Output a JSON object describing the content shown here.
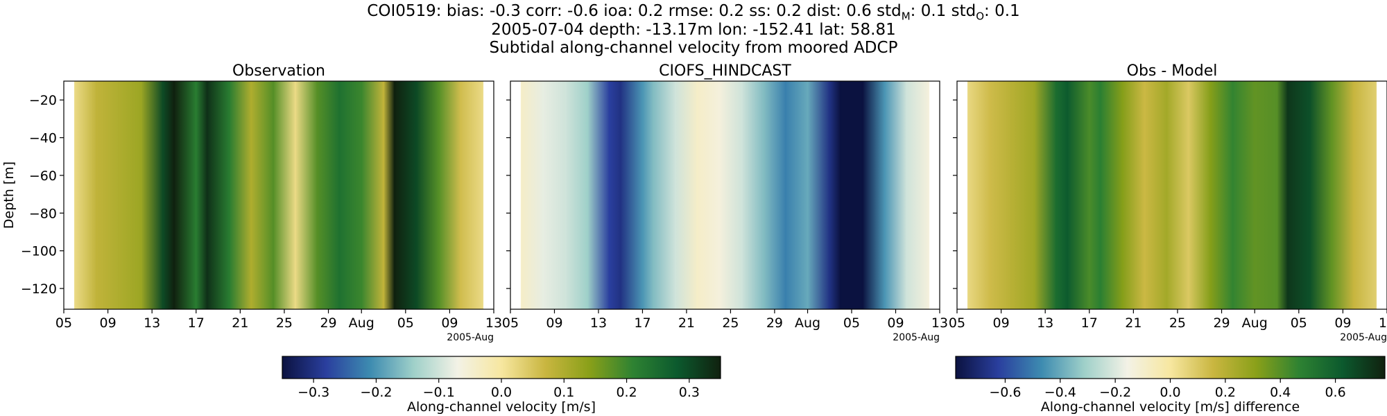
{
  "figure": {
    "title_lines": [
      "COI0519: bias: -0.3  corr: -0.6  ioa: 0.2  rmse: 0.2  ss: 0.2  dist: 0.6  std",
      "2005-07-04 depth: -13.17m lon: -152.41 lat: 58.81",
      "Subtidal along-channel velocity from moored ADCP"
    ],
    "title_std_parts": [
      {
        "base": "std",
        "sub": "M",
        "value": ": 0.1"
      },
      {
        "base": "std",
        "sub": "O",
        "value": ": 0.1"
      }
    ]
  },
  "chart_data": [
    {
      "type": "heatmap",
      "panel": "observation",
      "title": "Observation",
      "ylabel": "Depth [m]",
      "xlabel": "",
      "x_tick_labels": [
        "05",
        "09",
        "13",
        "17",
        "21",
        "25",
        "29",
        "Aug",
        "05",
        "09",
        "13"
      ],
      "x_offset_label": "2005-Aug",
      "y_ticks": [
        -20,
        -40,
        -60,
        -80,
        -100,
        -120
      ],
      "ylim": [
        -131,
        -10
      ],
      "xlim": [
        "2005-07-05",
        "2005-08-13"
      ],
      "data_range": [
        "2005-07-06",
        "2005-08-12"
      ],
      "vmin": -0.35,
      "vmax": 0.35,
      "profile_dates": [
        "2005-07-06",
        "2005-07-08",
        "2005-07-10",
        "2005-07-12",
        "2005-07-14",
        "2005-07-15",
        "2005-07-17",
        "2005-07-18",
        "2005-07-20",
        "2005-07-22",
        "2005-07-24",
        "2005-07-26",
        "2005-07-28",
        "2005-07-30",
        "2005-08-01",
        "2005-08-03",
        "2005-08-04",
        "2005-08-06",
        "2005-08-08",
        "2005-08-10",
        "2005-08-12"
      ],
      "column_values": [
        0.02,
        0.08,
        0.1,
        0.12,
        0.3,
        0.35,
        0.22,
        0.33,
        0.22,
        0.1,
        0.18,
        0.02,
        0.18,
        0.24,
        0.2,
        0.08,
        0.35,
        0.3,
        0.18,
        0.06,
        0.02
      ]
    },
    {
      "type": "heatmap",
      "panel": "model",
      "title": "CIOFS_HINDCAST",
      "x_tick_labels": [
        "05",
        "09",
        "13",
        "17",
        "21",
        "25",
        "29",
        "Aug",
        "05",
        "09",
        "13"
      ],
      "x_offset_label": "2005-Aug",
      "y_ticks": [
        -20,
        -40,
        -60,
        -80,
        -100,
        -120
      ],
      "ylim": [
        -131,
        -10
      ],
      "xlim": [
        "2005-07-05",
        "2005-08-13"
      ],
      "data_range": [
        "2005-07-06",
        "2005-08-12"
      ],
      "vmin": -0.35,
      "vmax": 0.35,
      "profile_dates": [
        "2005-07-06",
        "2005-07-08",
        "2005-07-10",
        "2005-07-12",
        "2005-07-14",
        "2005-07-15",
        "2005-07-17",
        "2005-07-18",
        "2005-07-20",
        "2005-07-22",
        "2005-07-24",
        "2005-07-26",
        "2005-07-28",
        "2005-07-30",
        "2005-08-01",
        "2005-08-03",
        "2005-08-04",
        "2005-08-06",
        "2005-08-08",
        "2005-08-10",
        "2005-08-12"
      ],
      "column_values": [
        -0.04,
        -0.08,
        -0.1,
        -0.14,
        -0.28,
        -0.3,
        -0.2,
        -0.16,
        -0.1,
        -0.04,
        -0.06,
        -0.1,
        -0.16,
        -0.22,
        -0.18,
        -0.3,
        -0.36,
        -0.35,
        -0.2,
        -0.1,
        -0.06
      ]
    },
    {
      "type": "heatmap",
      "panel": "difference",
      "title": "Obs - Model",
      "x_tick_labels": [
        "05",
        "09",
        "13",
        "17",
        "21",
        "25",
        "29",
        "Aug",
        "05",
        "09",
        "13"
      ],
      "x_offset_label": "2005-Aug",
      "y_ticks": [
        -20,
        -40,
        -60,
        -80,
        -100,
        -120
      ],
      "ylim": [
        -131,
        -10
      ],
      "xlim": [
        "2005-07-05",
        "2005-08-13"
      ],
      "data_range": [
        "2005-07-06",
        "2005-08-12"
      ],
      "vmin": -0.78,
      "vmax": 0.78,
      "profile_dates": [
        "2005-07-06",
        "2005-07-08",
        "2005-07-10",
        "2005-07-12",
        "2005-07-14",
        "2005-07-15",
        "2005-07-17",
        "2005-07-18",
        "2005-07-20",
        "2005-07-22",
        "2005-07-24",
        "2005-07-26",
        "2005-07-28",
        "2005-07-30",
        "2005-08-01",
        "2005-08-03",
        "2005-08-04",
        "2005-08-06",
        "2005-08-08",
        "2005-08-10",
        "2005-08-12"
      ],
      "column_values": [
        0.05,
        0.14,
        0.2,
        0.26,
        0.55,
        0.62,
        0.42,
        0.48,
        0.32,
        0.15,
        0.25,
        0.1,
        0.32,
        0.46,
        0.38,
        0.4,
        0.72,
        0.65,
        0.38,
        0.16,
        0.08
      ]
    }
  ],
  "colorbars": [
    {
      "label": "Along-channel velocity [m/s]",
      "min": -0.35,
      "max": 0.35,
      "ticks": [
        -0.3,
        -0.2,
        -0.1,
        0.0,
        0.1,
        0.2,
        0.3
      ],
      "tick_labels": [
        "−0.3",
        "−0.2",
        "−0.1",
        "0.0",
        "0.1",
        "0.2",
        "0.3"
      ]
    },
    {
      "label": "Along-channel velocity [m/s] difference",
      "min": -0.78,
      "max": 0.78,
      "ticks": [
        -0.6,
        -0.4,
        -0.2,
        0.0,
        0.2,
        0.4,
        0.6
      ],
      "tick_labels": [
        "−0.6",
        "−0.4",
        "−0.2",
        "0.0",
        "0.2",
        "0.4",
        "0.6"
      ]
    }
  ],
  "colormap": [
    "#0b1240",
    "#2a3f9e",
    "#3d8bb0",
    "#9fd0c9",
    "#f3f2e6",
    "#f7e7a0",
    "#c9b640",
    "#8aa019",
    "#2e8232",
    "#0c5a2e",
    "#10210f"
  ]
}
